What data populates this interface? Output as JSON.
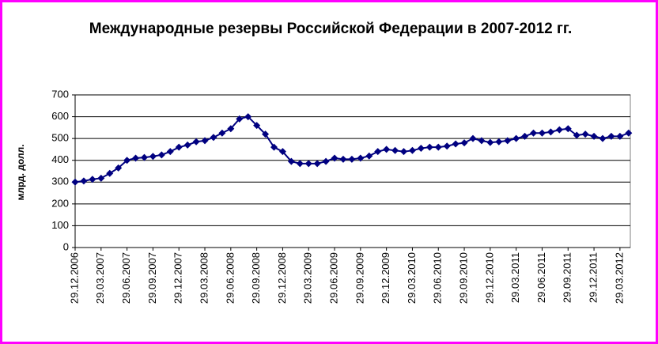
{
  "chart_data": {
    "type": "line",
    "title": "Международные резервы Российской Федерации в 2007-2012 гг.",
    "y_label": "млрд. долл.",
    "categories": [
      "29.12.2006",
      null,
      null,
      "29.03.2007",
      null,
      null,
      "29.06.2007",
      null,
      null,
      "29.09.2007",
      null,
      null,
      "29.12.2007",
      null,
      null,
      "29.03.2008",
      null,
      null,
      "29.06.2008",
      null,
      null,
      "29.09.2008",
      null,
      null,
      "29.12.2008",
      null,
      null,
      "29.03.2009",
      null,
      null,
      "29.06.2009",
      null,
      null,
      "29.09.2009",
      null,
      null,
      "29.12.2009",
      null,
      null,
      "29.03.2010",
      null,
      null,
      "29.06.2010",
      null,
      null,
      "29.09.2010",
      null,
      null,
      "29.12.2010",
      null,
      null,
      "29.03.2011",
      null,
      null,
      "29.06.2011",
      null,
      null,
      "29.09.2011",
      null,
      null,
      "29.12.2011",
      null,
      null,
      "29.03.2012",
      null
    ],
    "series": [
      {
        "name": "Международные резервы",
        "color": "#000080",
        "values": [
          300,
          305,
          313,
          318,
          340,
          365,
          400,
          410,
          413,
          418,
          425,
          440,
          460,
          470,
          485,
          490,
          505,
          525,
          545,
          590,
          600,
          560,
          520,
          460,
          440,
          395,
          385,
          385,
          385,
          395,
          410,
          405,
          405,
          410,
          420,
          440,
          450,
          445,
          440,
          445,
          455,
          460,
          460,
          465,
          475,
          480,
          500,
          490,
          482,
          485,
          490,
          500,
          510,
          525,
          525,
          530,
          540,
          545,
          515,
          520,
          510,
          500,
          510,
          510,
          525
        ]
      }
    ],
    "ylim": [
      0,
      700
    ],
    "yticks": [
      0,
      100,
      200,
      300,
      400,
      500,
      600,
      700
    ],
    "grid": true
  }
}
